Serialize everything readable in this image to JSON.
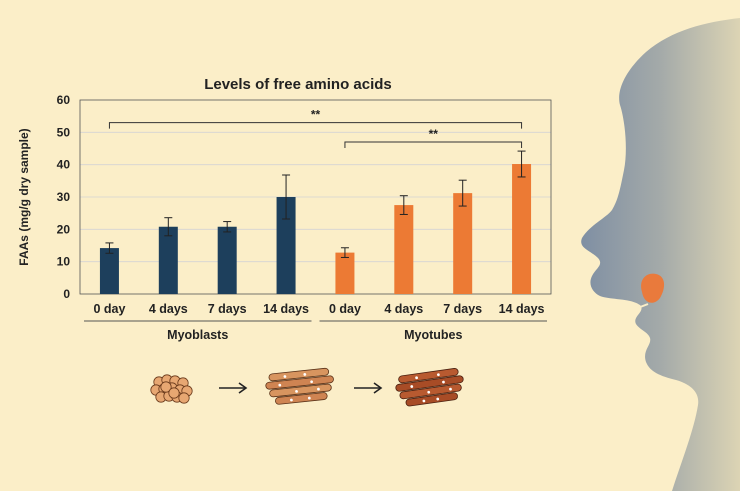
{
  "chart_data": {
    "type": "bar",
    "title": "Levels of free amino acids",
    "ylabel": "FAAs (mg/g dry sample)",
    "xlabel": "",
    "ylim": [
      0,
      60
    ],
    "yticks": [
      0,
      10,
      20,
      30,
      40,
      50,
      60
    ],
    "grid": true,
    "categories": [
      "0 day",
      "4 days",
      "7 days",
      "14 days",
      "0 day",
      "4 days",
      "7 days",
      "14 days"
    ],
    "groups": [
      {
        "name": "Myoblasts",
        "color": "#1d3f5c",
        "indices": [
          0,
          1,
          2,
          3
        ]
      },
      {
        "name": "Myotubes",
        "color": "#ec7a34",
        "indices": [
          4,
          5,
          6,
          7
        ]
      }
    ],
    "values": [
      14.2,
      20.8,
      20.8,
      30.0,
      12.8,
      27.5,
      31.2,
      40.2
    ],
    "errors": [
      1.6,
      2.8,
      1.6,
      6.8,
      1.5,
      2.9,
      4.0,
      4.0
    ],
    "significance": [
      {
        "label": "**",
        "from": 0,
        "to": 7,
        "y": 53
      },
      {
        "label": "**",
        "from": 4,
        "to": 7,
        "y": 47
      }
    ],
    "colors": {
      "myoblasts": "#1d3f5c",
      "myotubes": "#ec7a34"
    }
  },
  "illustration": {
    "stages": [
      "cell-cluster-icon",
      "arrow-icon",
      "myotube-fibers-icon",
      "arrow-icon",
      "cooked-meat-icon"
    ],
    "profile": "child-face-silhouette"
  }
}
